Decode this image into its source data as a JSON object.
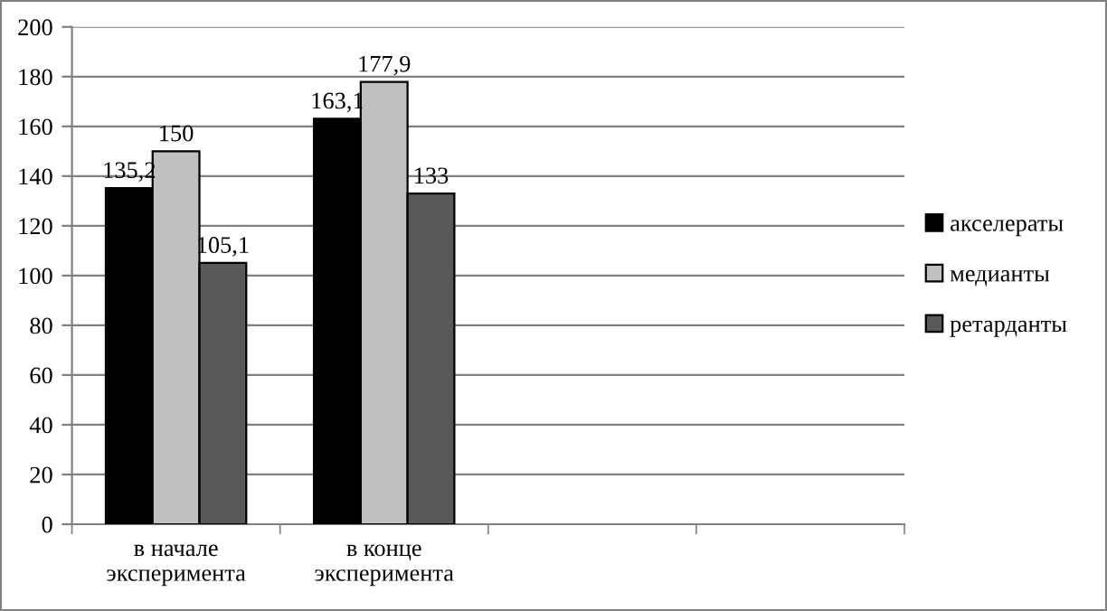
{
  "chart_data": {
    "type": "bar",
    "categories": [
      "в начале\nэксперимента",
      "в конце\nэксперимента",
      null,
      null
    ],
    "series": [
      {
        "name": "акселераты",
        "color": "#000000",
        "values": [
          135.2,
          163.1,
          null,
          null
        ],
        "value_labels": [
          "135,2",
          "163,1",
          null,
          null
        ]
      },
      {
        "name": "медианты",
        "color": "#c0c0c0",
        "values": [
          150,
          177.9,
          null,
          null
        ],
        "value_labels": [
          "150",
          "177,9",
          null,
          null
        ]
      },
      {
        "name": "ретарданты",
        "color": "#595959",
        "values": [
          105.1,
          133,
          null,
          null
        ],
        "value_labels": [
          "105,1",
          "133",
          null,
          null
        ]
      }
    ],
    "ylim": [
      0,
      200
    ],
    "yticks": [
      0,
      20,
      40,
      60,
      80,
      100,
      120,
      140,
      160,
      180,
      200
    ],
    "grid": "y",
    "legend": "right"
  }
}
